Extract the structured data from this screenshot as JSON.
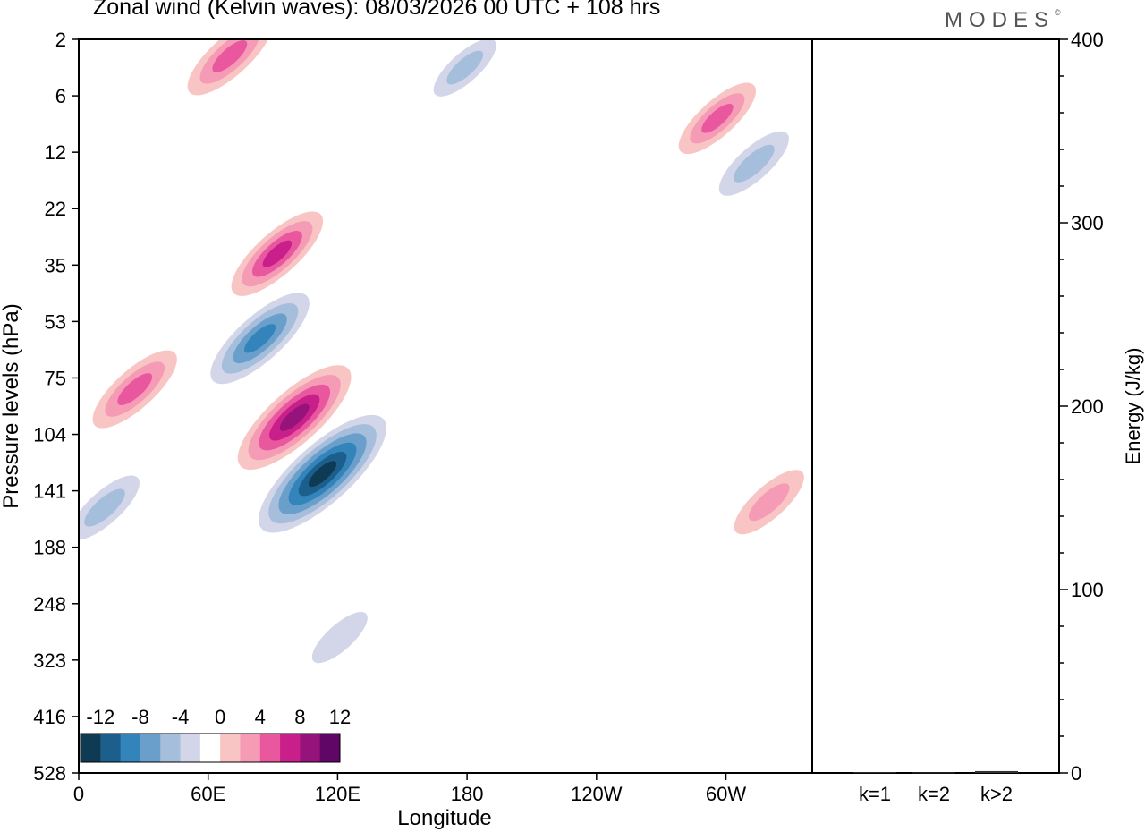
{
  "header": {
    "title": "Zonal wind (Kelvin waves):  08/03/2026  00 UTC  + 108 hrs",
    "brand": "MODES",
    "brand_mark": "©"
  },
  "chart_data": [
    {
      "type": "heatmap",
      "title": "Zonal wind (Kelvin waves):  08/03/2026  00 UTC  + 108 hrs",
      "xlabel": "Longitude",
      "ylabel": "Pressure levels (hPa)",
      "x_ticks": [
        "0",
        "60E",
        "120E",
        "180",
        "120W",
        "60W"
      ],
      "x_tick_values": [
        0,
        60,
        120,
        180,
        240,
        300
      ],
      "xlim": [
        0,
        340
      ],
      "y_ticks": [
        "2",
        "6",
        "12",
        "22",
        "35",
        "53",
        "75",
        "104",
        "141",
        "188",
        "248",
        "323",
        "416",
        "528"
      ],
      "colorbar": {
        "labels": [
          "-12",
          "-8",
          "-4",
          "0",
          "4",
          "8",
          "12"
        ],
        "levels": [
          -14,
          -12,
          -10,
          -8,
          -6,
          -4,
          -2,
          2,
          4,
          6,
          8,
          10,
          12,
          14
        ],
        "colors": [
          "#0f3a54",
          "#1c5f8c",
          "#3484bc",
          "#6a9fcb",
          "#a4bedb",
          "#d2d6e8",
          "#ffffff",
          "#f9c4c4",
          "#f59bb6",
          "#e9589e",
          "#c81f8a",
          "#95137b",
          "#5f0666"
        ]
      },
      "features": [
        {
          "kind": "positive",
          "lon": 100,
          "level_idx": 6.7,
          "peak": 11
        },
        {
          "kind": "negative",
          "lon": 113,
          "level_idx": 7.7,
          "peak": -13
        },
        {
          "kind": "negative",
          "lon": 84,
          "level_idx": 5.3,
          "peak": -9
        },
        {
          "kind": "positive",
          "lon": 92,
          "level_idx": 3.8,
          "peak": 8
        },
        {
          "kind": "positive",
          "lon": 26,
          "level_idx": 6.2,
          "peak": 7
        },
        {
          "kind": "negative",
          "lon": 12,
          "level_idx": 8.3,
          "peak": -5
        },
        {
          "kind": "positive",
          "lon": 70,
          "level_idx": 0.3,
          "peak": 7
        },
        {
          "kind": "negative",
          "lon": 179,
          "level_idx": 0.5,
          "peak": -4
        },
        {
          "kind": "negative",
          "lon": 313,
          "level_idx": 2.2,
          "peak": -5
        },
        {
          "kind": "positive",
          "lon": 296,
          "level_idx": 1.4,
          "peak": 6
        },
        {
          "kind": "positive",
          "lon": 320,
          "level_idx": 8.2,
          "peak": 5
        },
        {
          "kind": "negative",
          "lon": 121,
          "level_idx": 10.6,
          "peak": -3
        }
      ]
    },
    {
      "type": "bar",
      "categories": [
        "k=1",
        "k=2",
        "k>2"
      ],
      "values": [
        0.4,
        0.3,
        1.0
      ],
      "ylabel": "Energy (J/kg)",
      "ylim": [
        0,
        400
      ],
      "y_ticks": [
        "0",
        "100",
        "200",
        "300",
        "400"
      ],
      "y_tick_values": [
        0,
        100,
        200,
        300,
        400
      ]
    }
  ]
}
